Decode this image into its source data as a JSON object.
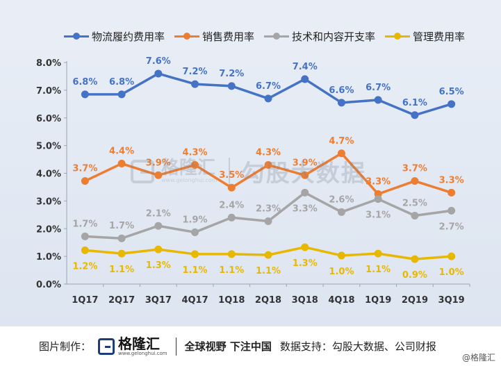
{
  "chart_data": {
    "type": "line",
    "categories": [
      "1Q17",
      "2Q17",
      "3Q17",
      "4Q17",
      "1Q18",
      "2Q18",
      "3Q18",
      "4Q18",
      "1Q19",
      "2Q19",
      "3Q19"
    ],
    "y_ticks": [
      "0.0%",
      "1.0%",
      "2.0%",
      "3.0%",
      "4.0%",
      "5.0%",
      "6.0%",
      "7.0%",
      "8.0%"
    ],
    "ylim": [
      0,
      8
    ],
    "grid": false,
    "legend_position": "top",
    "series": [
      {
        "name": "物流履约费用率",
        "color": "#4472c4",
        "values": [
          6.85,
          6.85,
          7.6,
          7.22,
          7.15,
          6.7,
          7.4,
          6.55,
          6.65,
          6.1,
          6.5
        ],
        "labels": [
          "6.8%",
          "6.8%",
          "7.6%",
          "7.2%",
          "7.2%",
          "6.7%",
          "7.4%",
          "6.6%",
          "6.7%",
          "6.1%",
          "6.5%"
        ],
        "label_pos": "above"
      },
      {
        "name": "销售费用率",
        "color": "#ed7d31",
        "values": [
          3.72,
          4.35,
          3.93,
          4.3,
          3.48,
          4.3,
          3.93,
          4.72,
          3.25,
          3.72,
          3.3
        ],
        "labels": [
          "3.7%",
          "4.4%",
          "3.9%",
          "4.3%",
          "3.5%",
          "4.3%",
          "3.9%",
          "4.7%",
          "3.3%",
          "3.7%",
          "3.3%"
        ],
        "label_pos": "above"
      },
      {
        "name": "技术和内容开支率",
        "color": "#a5a5a5",
        "values": [
          1.72,
          1.65,
          2.1,
          1.87,
          2.4,
          2.27,
          3.3,
          2.6,
          3.07,
          2.47,
          2.65
        ],
        "labels": [
          "1.7%",
          "1.7%",
          "2.1%",
          "1.9%",
          "2.4%",
          "2.3%",
          "3.3%",
          "2.6%",
          "3.1%",
          "2.5%",
          "2.7%"
        ],
        "label_pos": [
          "above",
          "above",
          "above",
          "above",
          "above",
          "above",
          "below",
          "above",
          "below",
          "above",
          "below"
        ]
      },
      {
        "name": "管理费用率",
        "color": "#e8b800",
        "values": [
          1.22,
          1.1,
          1.25,
          1.08,
          1.08,
          1.05,
          1.33,
          1.03,
          1.1,
          0.9,
          1.0
        ],
        "labels": [
          "1.2%",
          "1.1%",
          "1.3%",
          "1.1%",
          "1.1%",
          "1.1%",
          "1.3%",
          "1.0%",
          "1.1%",
          "0.9%",
          "1.0%"
        ],
        "label_pos": "below"
      }
    ]
  },
  "watermark": {
    "brand": "格隆汇",
    "url": "www.gelonghui.com",
    "text": "勾股大数据"
  },
  "footer": {
    "label": "图片制作：",
    "logo_brand": "格隆汇",
    "logo_url": "www.gelonghui.com",
    "slogan": "全球视野 下注中国",
    "source": "数据支持：勾股大数据、公司财报",
    "credit": "@格隆汇"
  }
}
